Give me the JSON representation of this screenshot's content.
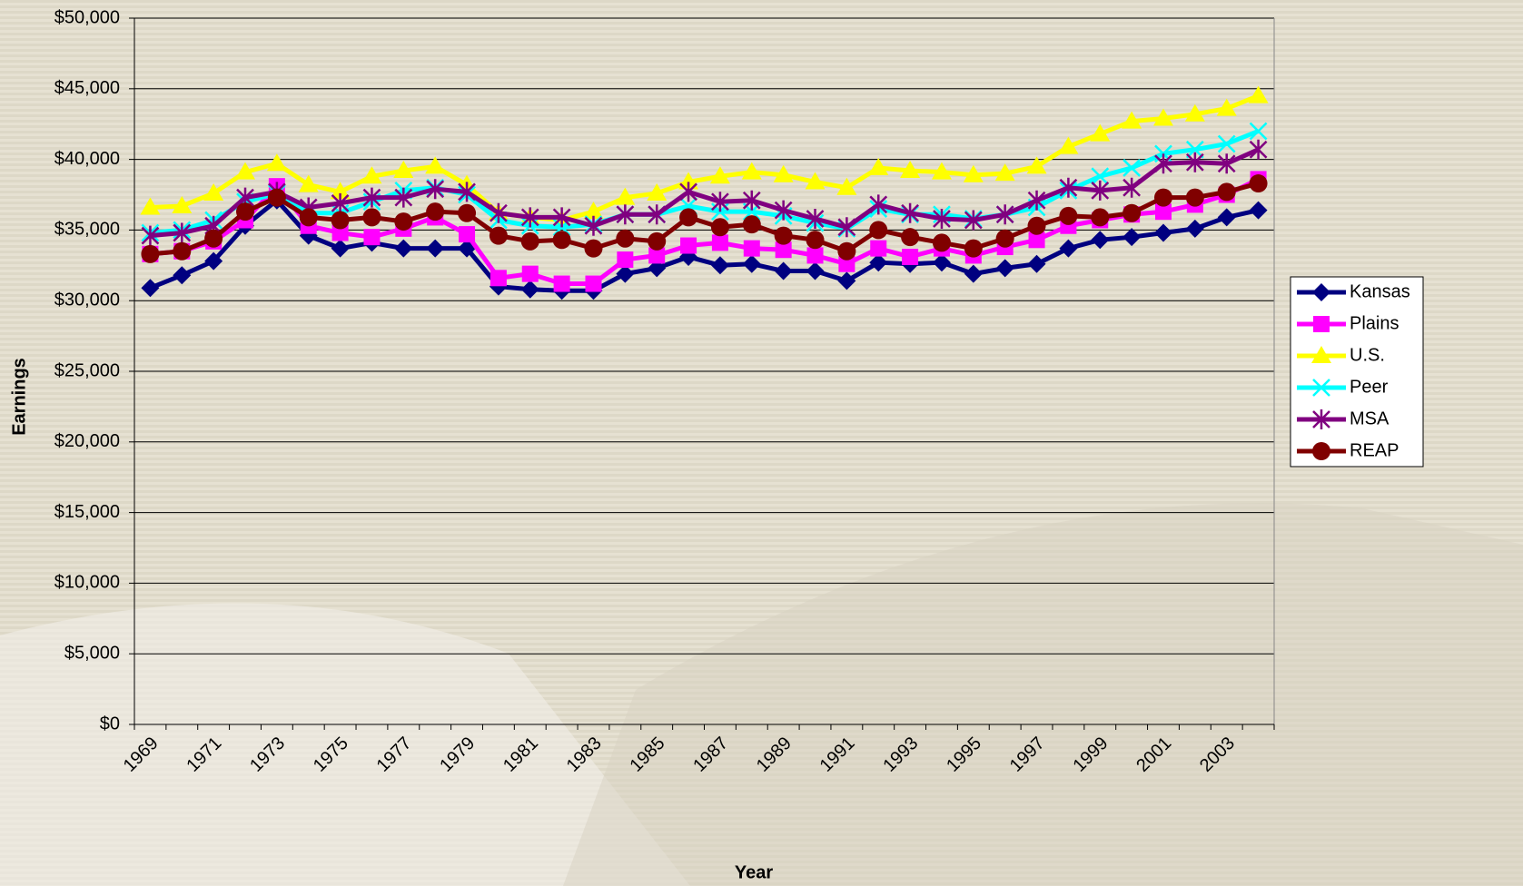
{
  "chart_data": {
    "type": "line",
    "x_label": "Year",
    "y_label": "Earnings",
    "categories": [
      "1969",
      null,
      "1971",
      null,
      "1973",
      null,
      "1975",
      null,
      "1977",
      null,
      "1979",
      null,
      "1981",
      null,
      "1983",
      null,
      "1985",
      null,
      "1987",
      null,
      "1989",
      null,
      "1991",
      null,
      "1993",
      null,
      "1995",
      null,
      "1997",
      null,
      "1999",
      null,
      "2001",
      null,
      "2003",
      null
    ],
    "ylim": [
      0,
      50000
    ],
    "yticks": [
      {
        "value": 0,
        "label": "$0"
      },
      {
        "value": 5000,
        "label": "$5,000"
      },
      {
        "value": 10000,
        "label": "$10,000"
      },
      {
        "value": 15000,
        "label": "$15,000"
      },
      {
        "value": 20000,
        "label": "$20,000"
      },
      {
        "value": 25000,
        "label": "$25,000"
      },
      {
        "value": 30000,
        "label": "$30,000"
      },
      {
        "value": 35000,
        "label": "$35,000"
      },
      {
        "value": 40000,
        "label": "$40,000"
      },
      {
        "value": 45000,
        "label": "$45,000"
      },
      {
        "value": 50000,
        "label": "$50,000"
      }
    ],
    "grid": true,
    "legend": "right",
    "series": [
      {
        "name": "Kansas",
        "color": "#000080",
        "marker": "diamond",
        "values": [
          30900,
          31800,
          32800,
          35300,
          37100,
          34600,
          33700,
          34100,
          33700,
          33700,
          33700,
          31000,
          30800,
          30700,
          30700,
          31900,
          32300,
          33100,
          32500,
          32600,
          32100,
          32100,
          31400,
          32700,
          32600,
          32700,
          31900,
          32300,
          32600,
          33700,
          34300,
          34500,
          34800,
          35100,
          35900,
          36400
        ]
      },
      {
        "name": "Plains",
        "color": "#ff00ff",
        "marker": "square",
        "values": [
          33300,
          33500,
          34200,
          35700,
          38100,
          35300,
          34800,
          34500,
          35100,
          35900,
          34700,
          31600,
          31900,
          31200,
          31200,
          32900,
          33200,
          33900,
          34100,
          33700,
          33600,
          33200,
          32600,
          33700,
          33100,
          33700,
          33200,
          33800,
          34300,
          35300,
          35700,
          36100,
          36300,
          36800,
          37500,
          38600
        ]
      },
      {
        "name": "U.S.",
        "color": "#ffff00",
        "marker": "triangle",
        "values": [
          36600,
          36700,
          37600,
          39100,
          39700,
          38200,
          37700,
          38800,
          39200,
          39500,
          38200,
          36200,
          35900,
          35700,
          36300,
          37300,
          37600,
          38400,
          38800,
          39100,
          38900,
          38400,
          38000,
          39400,
          39200,
          39100,
          38900,
          39000,
          39500,
          40900,
          41800,
          42700,
          42900,
          43200,
          43600,
          44500
        ]
      },
      {
        "name": "Peer",
        "color": "#00ffff",
        "marker": "x",
        "values": [
          34800,
          35000,
          35700,
          37000,
          37600,
          36200,
          36200,
          37000,
          37800,
          38000,
          37500,
          35700,
          35300,
          35200,
          35400,
          36100,
          36100,
          36700,
          36300,
          36300,
          36000,
          35500,
          35100,
          36500,
          36100,
          36100,
          35800,
          36100,
          36600,
          37800,
          38800,
          39400,
          40400,
          40700,
          41100,
          42000
        ]
      },
      {
        "name": "MSA",
        "color": "#800080",
        "marker": "asterisk",
        "values": [
          34600,
          34800,
          35300,
          37300,
          37700,
          36600,
          36900,
          37300,
          37300,
          37900,
          37700,
          36200,
          35900,
          35900,
          35300,
          36100,
          36100,
          37700,
          37000,
          37100,
          36400,
          35800,
          35200,
          36800,
          36200,
          35800,
          35700,
          36100,
          37100,
          38000,
          37800,
          38000,
          39700,
          39800,
          39700,
          40700
        ]
      },
      {
        "name": "REAP",
        "color": "#800000",
        "marker": "circle",
        "values": [
          33300,
          33500,
          34400,
          36300,
          37300,
          35900,
          35700,
          35900,
          35600,
          36300,
          36200,
          34600,
          34200,
          34300,
          33700,
          34400,
          34200,
          35900,
          35200,
          35400,
          34600,
          34300,
          33500,
          35000,
          34500,
          34100,
          33700,
          34400,
          35300,
          36000,
          35900,
          36200,
          37300,
          37300,
          37700,
          38300
        ]
      }
    ]
  }
}
